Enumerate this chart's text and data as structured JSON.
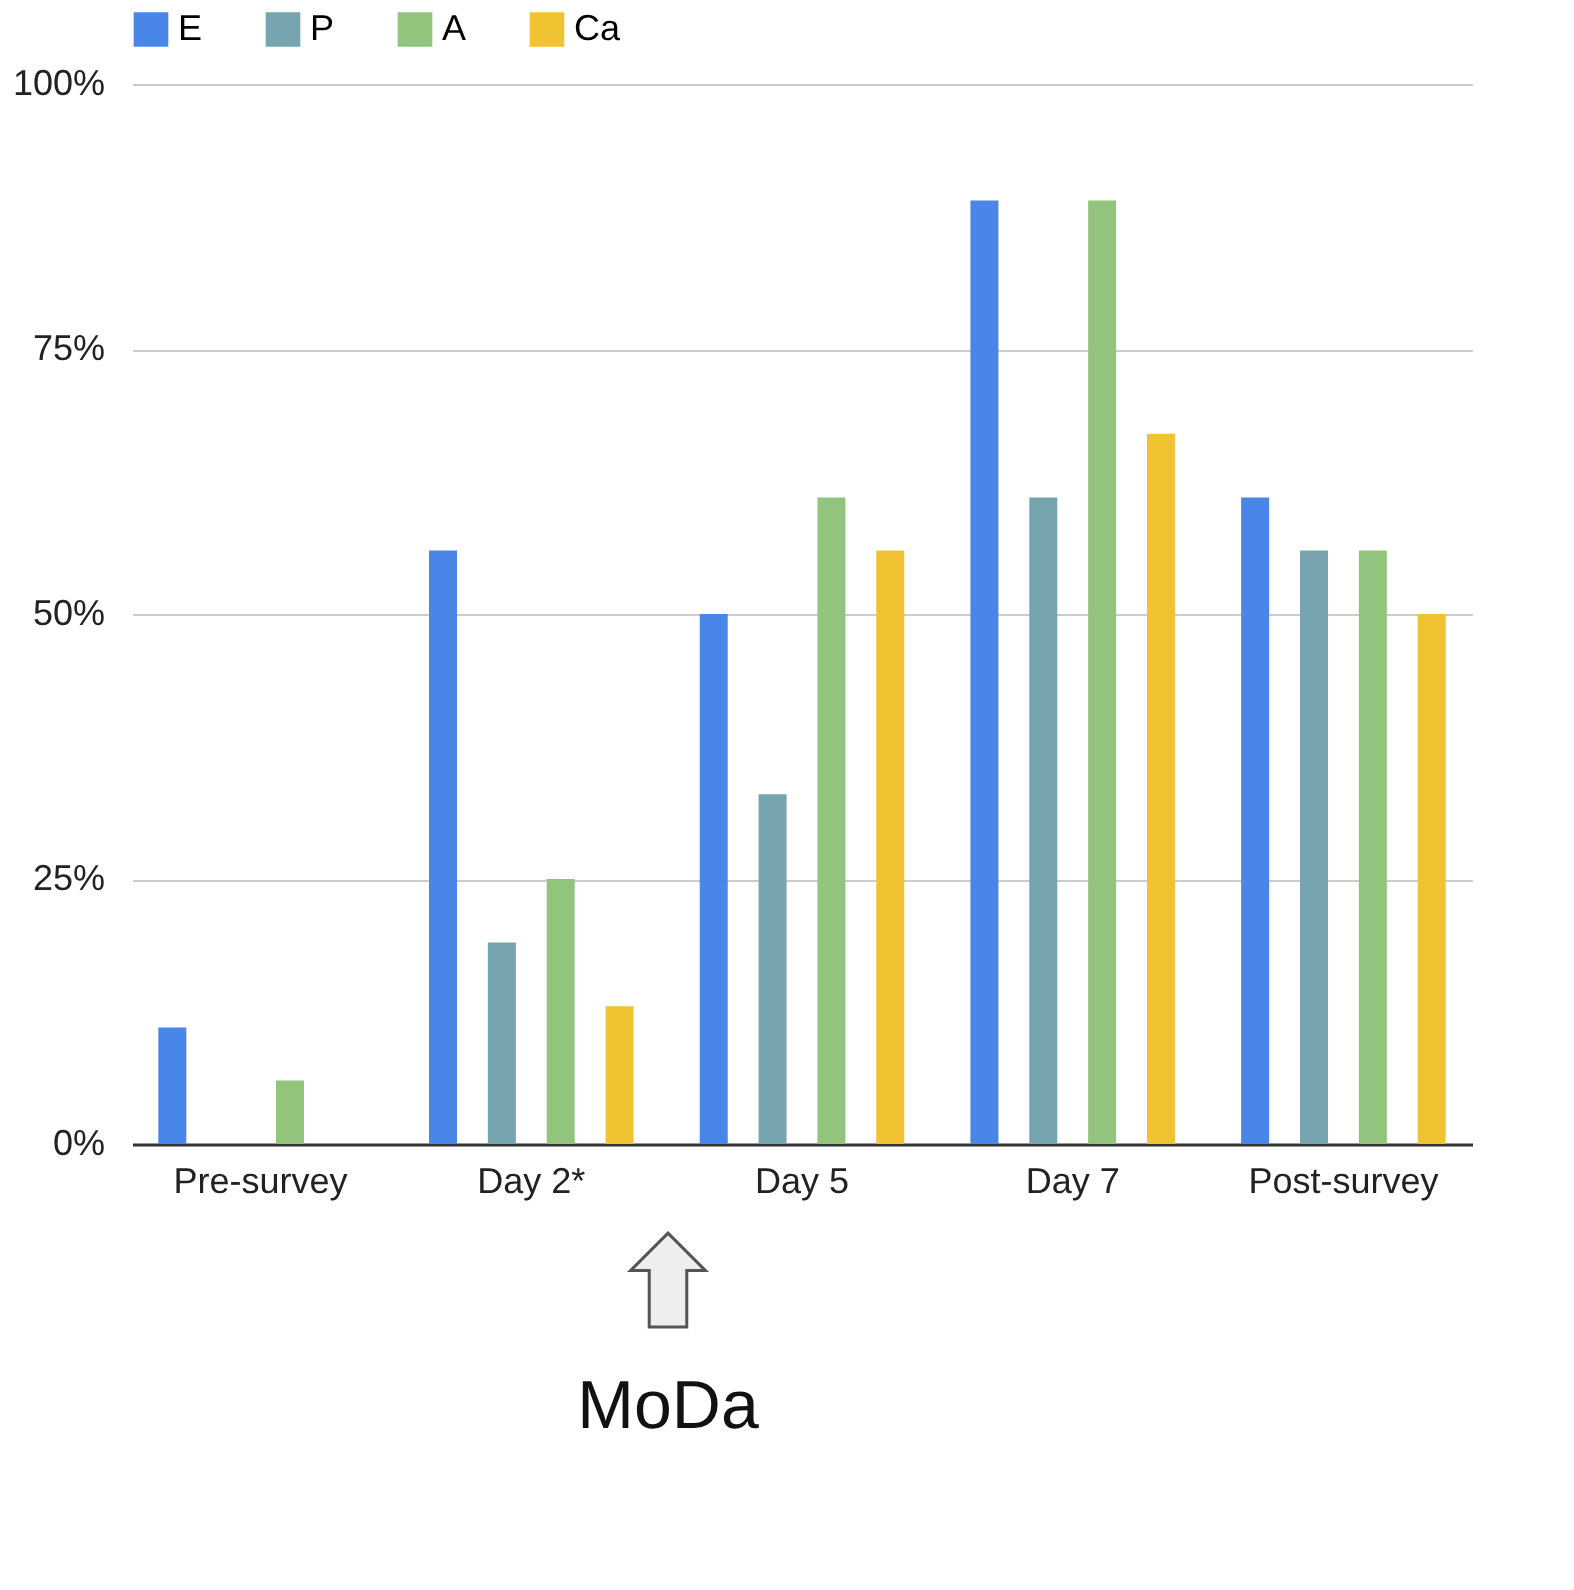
{
  "chart_data": {
    "type": "bar",
    "categories": [
      "Pre-survey",
      "Day 2*",
      "Day 5",
      "Day 7",
      "Post-survey"
    ],
    "series": [
      {
        "name": "E",
        "color": "#4a86e8",
        "values": [
          11,
          56,
          50,
          89,
          61
        ]
      },
      {
        "name": "P",
        "color": "#76a5af",
        "values": [
          0,
          19,
          33,
          61,
          56
        ]
      },
      {
        "name": "A",
        "color": "#93c47d",
        "values": [
          6,
          25,
          61,
          89,
          56
        ]
      },
      {
        "name": "Ca",
        "color": "#f1c232",
        "values": [
          0,
          13,
          56,
          67,
          50
        ]
      }
    ],
    "ylim": [
      0,
      100
    ],
    "yticks": [
      {
        "value": 0,
        "label": "0%"
      },
      {
        "value": 25,
        "label": "25%"
      },
      {
        "value": 50,
        "label": "50%"
      },
      {
        "value": 75,
        "label": "75%"
      },
      {
        "value": 100,
        "label": "100%"
      }
    ],
    "grid": "y",
    "legend": "top",
    "annotations": [
      "MoDa"
    ]
  }
}
